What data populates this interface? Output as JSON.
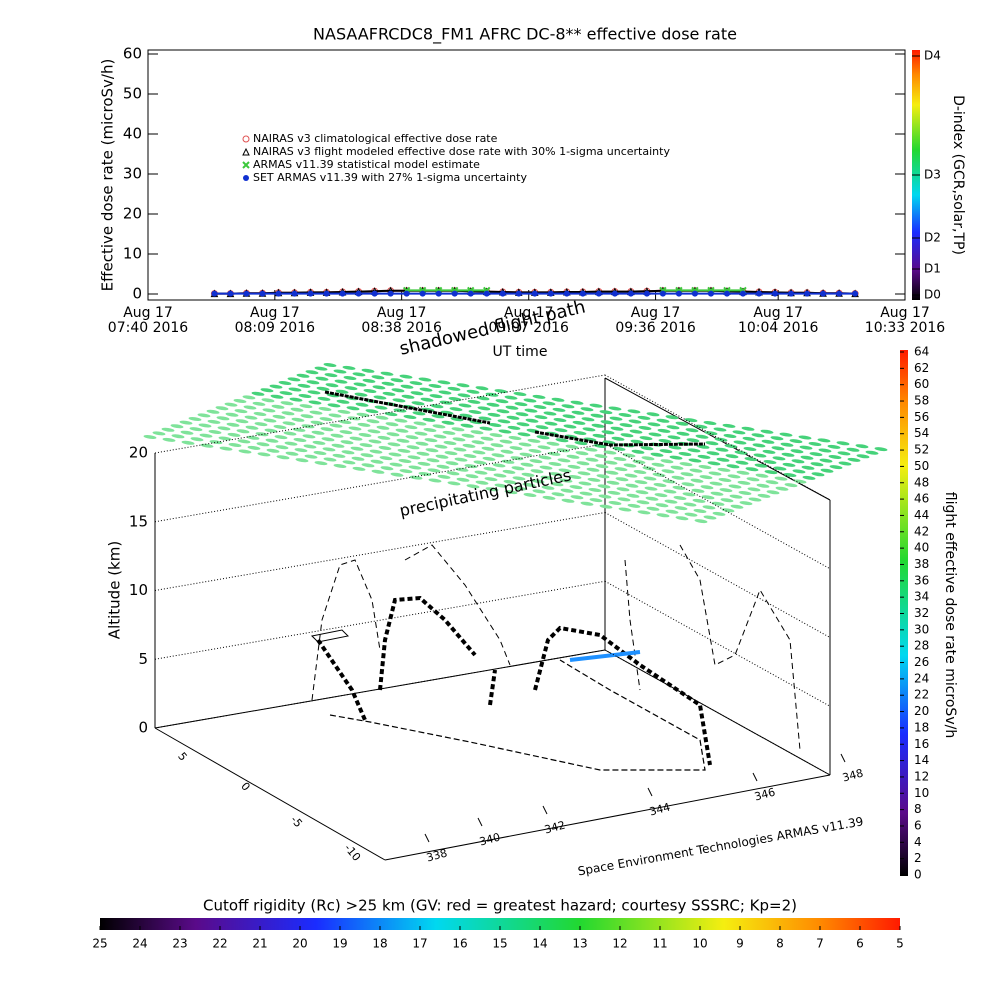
{
  "chart_data": [
    {
      "type": "line",
      "title": "NASAAFRCDC8_FM1 AFRC DC-8** effective dose rate",
      "ylabel": "Effective dose rate (microSv/h)",
      "xlabel": "UT time",
      "xlim": [
        7.667,
        10.55
      ],
      "xticks": [
        {
          "value": 7.667,
          "label": "Aug 17\n07:40 2016"
        },
        {
          "value": 8.15,
          "label": "Aug 17\n08:09 2016"
        },
        {
          "value": 8.633,
          "label": "Aug 17\n08:38 2016"
        },
        {
          "value": 9.117,
          "label": "Aug 17\n09:07 2016"
        },
        {
          "value": 9.6,
          "label": "Aug 17\n09:36 2016"
        },
        {
          "value": 10.067,
          "label": "Aug 17\n10:04 2016"
        },
        {
          "value": 10.55,
          "label": "Aug 17\n10:33 2016"
        }
      ],
      "ylim": [
        -1.5,
        61
      ],
      "yticks": [
        0,
        10,
        20,
        30,
        40,
        50,
        60
      ],
      "x": [
        7.92,
        7.981,
        8.042,
        8.103,
        8.164,
        8.225,
        8.286,
        8.347,
        8.408,
        8.469,
        8.53,
        8.591,
        8.652,
        8.713,
        8.774,
        8.835,
        8.896,
        8.957,
        9.018,
        9.079,
        9.14,
        9.201,
        9.262,
        9.323,
        9.384,
        9.445,
        9.506,
        9.567,
        9.628,
        9.689,
        9.75,
        9.811,
        9.872,
        9.933,
        9.994,
        10.055,
        10.116,
        10.177,
        10.238,
        10.299,
        10.36
      ],
      "series": [
        {
          "name": "NAIRAS v3 climatological effective dose rate",
          "color": "#e05050",
          "marker": "circle",
          "values": [
            0.1,
            0.1,
            0.2,
            0.2,
            0.3,
            0.3,
            0.4,
            0.4,
            0.5,
            0.6,
            0.7,
            0.8,
            0.8,
            0.8,
            0.8,
            0.8,
            0.7,
            0.6,
            0.5,
            0.4,
            0.4,
            0.4,
            0.5,
            0.5,
            0.6,
            0.6,
            0.6,
            0.7,
            0.8,
            0.8,
            0.8,
            0.8,
            0.7,
            0.6,
            0.5,
            0.4,
            0.3,
            0.3,
            0.2,
            0.2,
            0.1
          ]
        },
        {
          "name": "NAIRAS v3 flight modeled effective dose rate with 30% 1-sigma uncertainty",
          "color": "#000000",
          "marker": "triangle",
          "values": [
            0.1,
            0.1,
            0.2,
            0.2,
            0.3,
            0.3,
            0.4,
            0.4,
            0.5,
            0.6,
            0.7,
            0.8,
            0.8,
            0.8,
            0.8,
            0.8,
            0.7,
            0.6,
            0.5,
            0.4,
            0.4,
            0.4,
            0.5,
            0.5,
            0.6,
            0.6,
            0.6,
            0.7,
            0.8,
            0.8,
            0.8,
            0.8,
            0.7,
            0.6,
            0.5,
            0.4,
            0.3,
            0.3,
            0.2,
            0.2,
            0.1
          ]
        },
        {
          "name": "ARMAS v11.39 statistical model estimate",
          "color": "#3cc83c",
          "marker": "x",
          "values": [
            null,
            null,
            null,
            null,
            null,
            null,
            null,
            null,
            null,
            null,
            null,
            null,
            0.9,
            0.9,
            0.9,
            0.9,
            0.9,
            0.9,
            null,
            null,
            null,
            null,
            null,
            null,
            null,
            null,
            null,
            null,
            0.9,
            0.9,
            0.9,
            0.9,
            0.9,
            0.9,
            null,
            null,
            null,
            null,
            null,
            null,
            null
          ]
        },
        {
          "name": "SET ARMAS v11.39 with 27% 1-sigma uncertainty",
          "color": "#1030d0",
          "marker": "dot",
          "values": [
            0.1,
            0.1,
            0.1,
            0.1,
            0.1,
            0.1,
            0.1,
            0.1,
            0.1,
            0.1,
            0.1,
            0.1,
            0.1,
            0.1,
            0.1,
            0.1,
            0.1,
            0.1,
            0.1,
            0.1,
            0.1,
            0.1,
            0.1,
            0.1,
            0.1,
            0.1,
            0.1,
            0.1,
            0.1,
            0.1,
            0.1,
            0.1,
            0.1,
            0.1,
            0.1,
            0.1,
            0.1,
            0.1,
            0.1,
            0.1,
            0.1
          ]
        }
      ],
      "colorbar": {
        "label": "D-index (GCR,solar,TP)",
        "ticks": [
          "D0",
          "D1",
          "D2",
          "D3",
          "D4"
        ]
      }
    },
    {
      "type": "3d",
      "zlabel": "Altitude (km)",
      "zlim": [
        0,
        20
      ],
      "zticks": [
        0,
        5,
        10,
        15,
        20
      ],
      "xticks": [
        338,
        340,
        342,
        344,
        346,
        348
      ],
      "yticks": [
        5,
        0,
        -5,
        -10
      ],
      "annotations": [
        "shadowed flight path",
        "precipitating particles"
      ],
      "credit": "Space Environment Technologies ARMAS v11.39",
      "colorbar": {
        "label": "flight effective dose rate microSv/h",
        "lim": [
          0,
          64
        ],
        "ticks": [
          0,
          2,
          4,
          6,
          8,
          10,
          12,
          14,
          16,
          18,
          20,
          22,
          24,
          26,
          28,
          30,
          32,
          34,
          36,
          38,
          40,
          42,
          44,
          46,
          48,
          50,
          52,
          54,
          56,
          58,
          60,
          62,
          64
        ]
      },
      "floor_colorbar": {
        "label": "Cutoff rigidity (Rc) >25 km (GV: red = greatest hazard; courtesy SSSRC; Kp=2)",
        "lim": [
          25,
          5
        ],
        "ticks": [
          25,
          24,
          23,
          22,
          21,
          20,
          19,
          18,
          17,
          16,
          15,
          14,
          13,
          12,
          11,
          10,
          9,
          8,
          7,
          6,
          5
        ]
      }
    }
  ]
}
